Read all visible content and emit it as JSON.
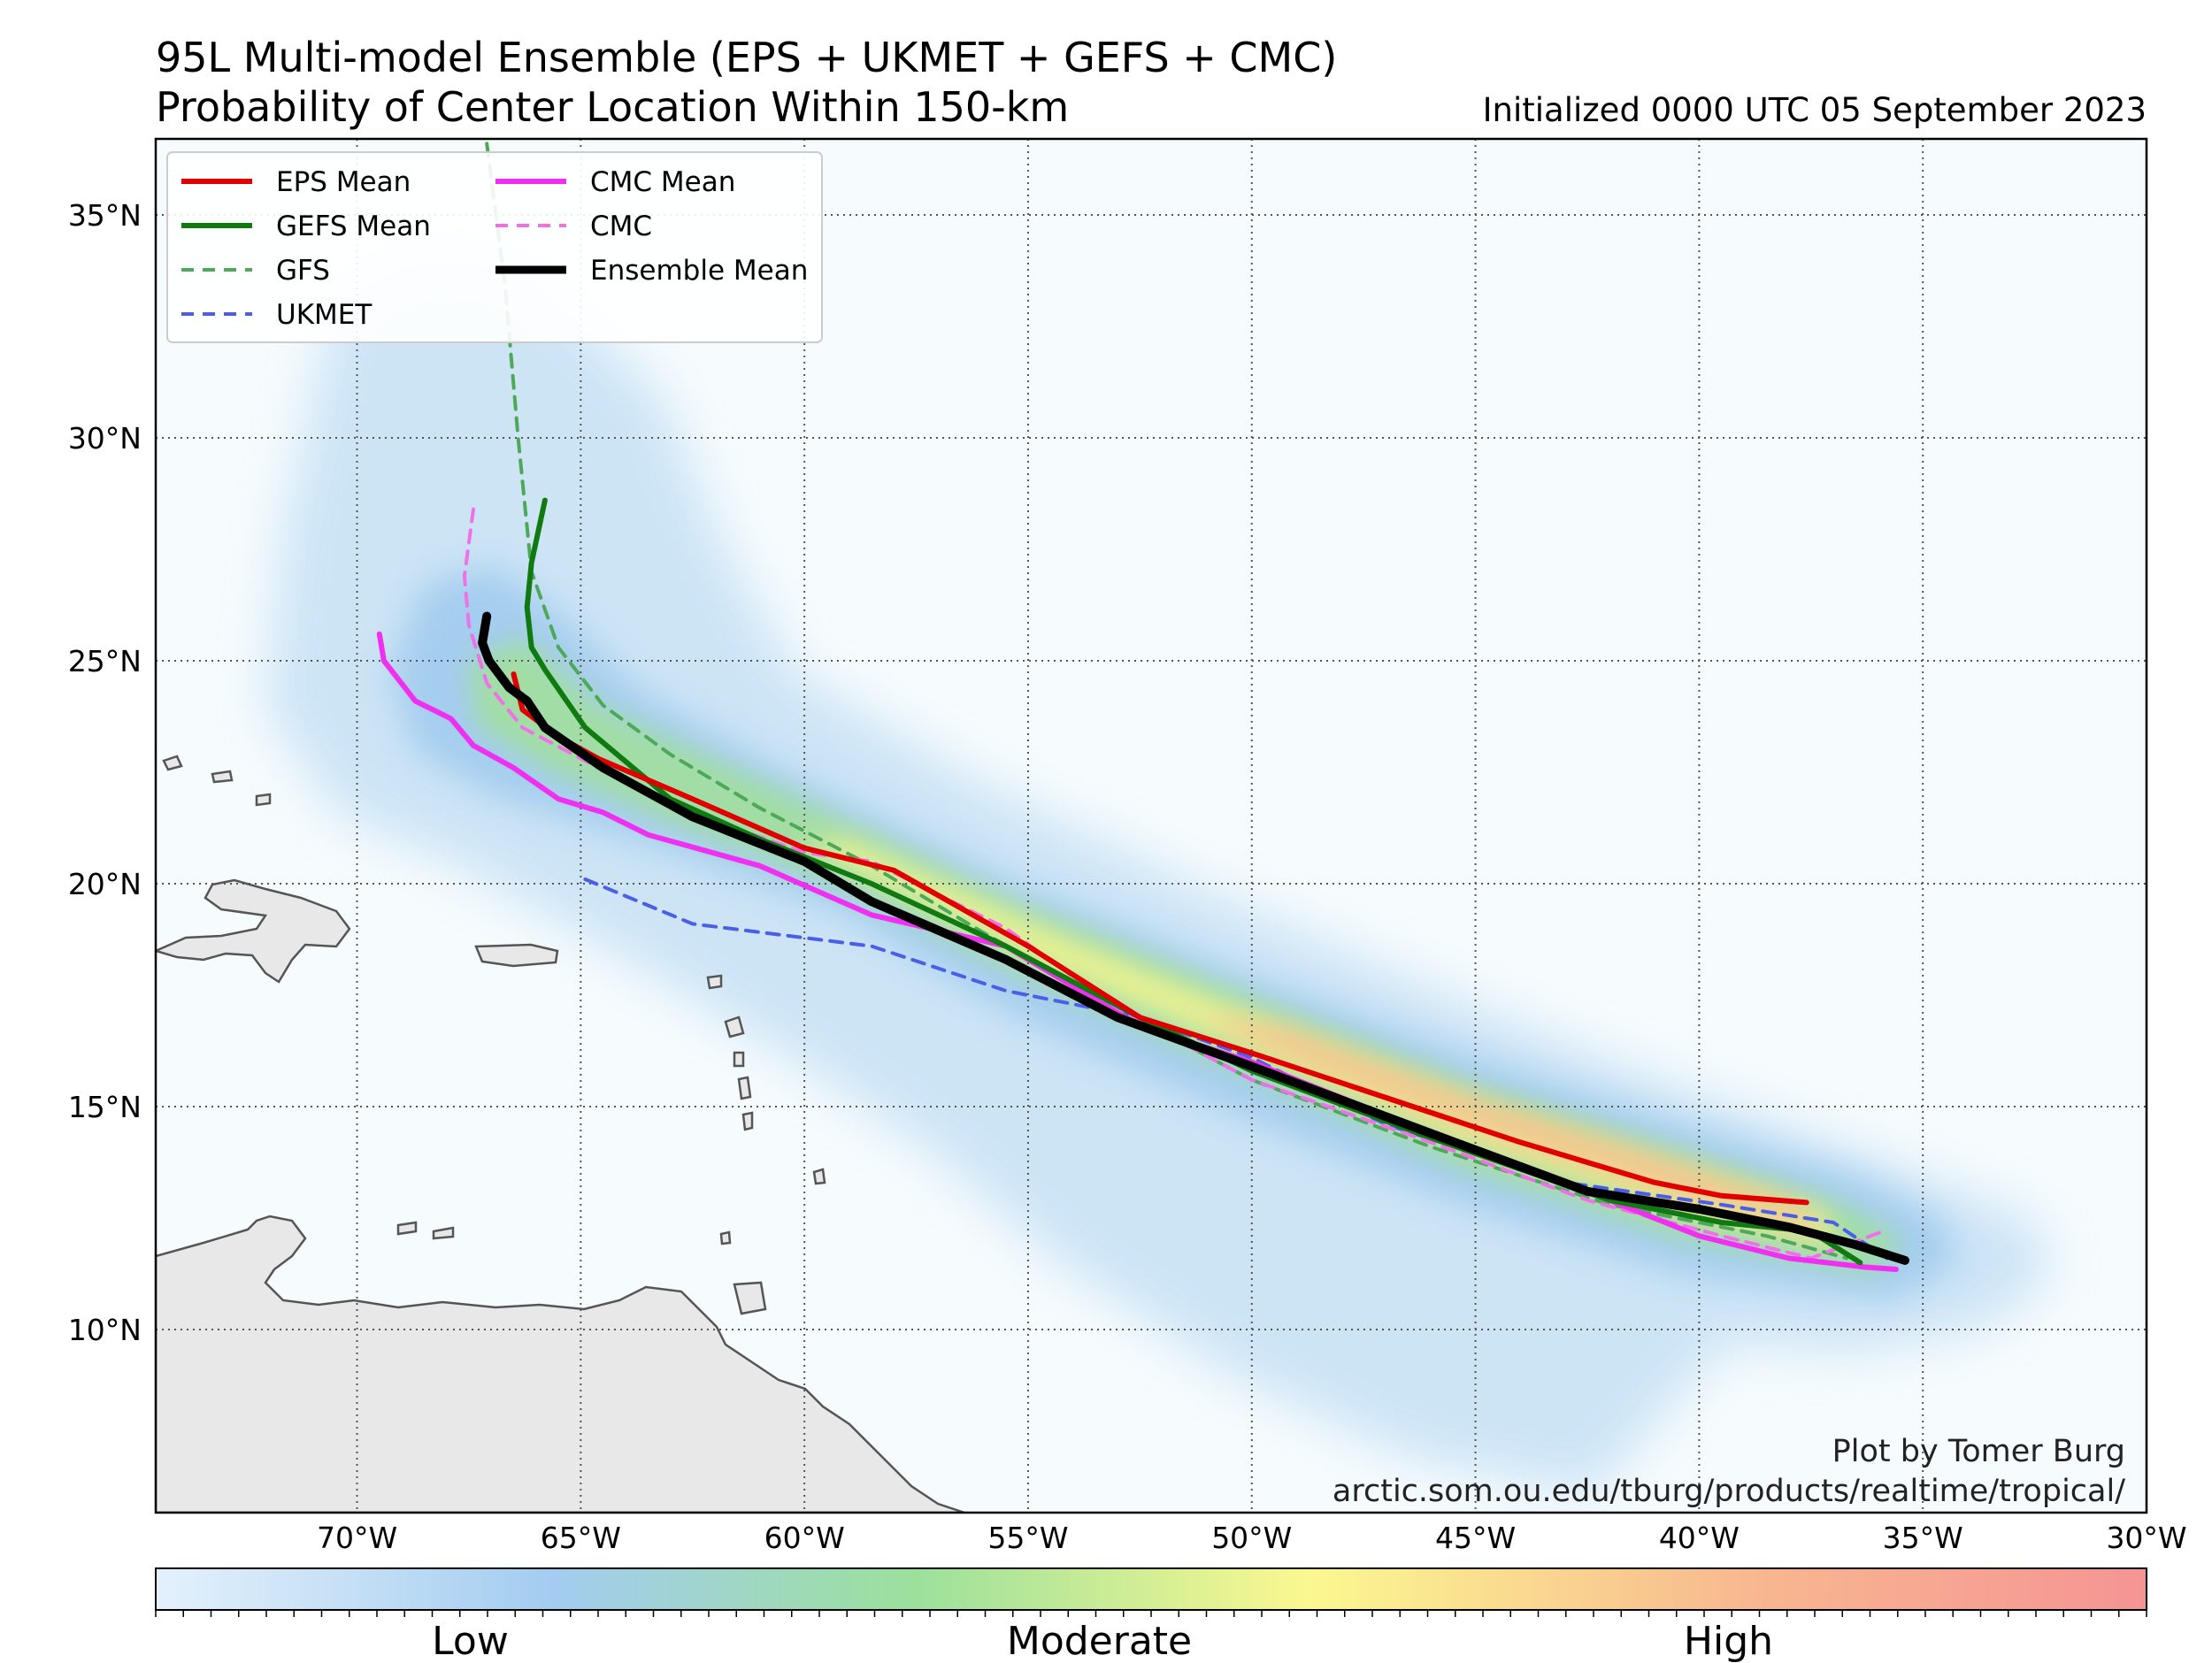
{
  "title": {
    "line1": "95L Multi-model Ensemble (EPS + UKMET + GEFS + CMC)",
    "line2": "Probability of Center Location Within 150-km",
    "initialized": "Initialized 0000 UTC 05 September 2023"
  },
  "map": {
    "lon_range": [
      -74.5,
      -30
    ],
    "lat_range": [
      6,
      37
    ],
    "lon_ticks": [
      {
        "value": -70,
        "label": "70°W"
      },
      {
        "value": -65,
        "label": "65°W"
      },
      {
        "value": -60,
        "label": "60°W"
      },
      {
        "value": -55,
        "label": "55°W"
      },
      {
        "value": -50,
        "label": "50°W"
      },
      {
        "value": -45,
        "label": "45°W"
      },
      {
        "value": -40,
        "label": "40°W"
      },
      {
        "value": -35,
        "label": "35°W"
      },
      {
        "value": -30,
        "label": "30°W"
      }
    ],
    "lat_ticks": [
      {
        "value": 10,
        "label": "10°N"
      },
      {
        "value": 15,
        "label": "15°N"
      },
      {
        "value": 20,
        "label": "20°N"
      },
      {
        "value": 25,
        "label": "25°N"
      },
      {
        "value": 30,
        "label": "30°N"
      },
      {
        "value": 35,
        "label": "35°N"
      }
    ],
    "gridlines": "dotted",
    "land_color": "#e8e8e8",
    "ocean_color": "#f6fbfd"
  },
  "legend": {
    "placement": "top-left",
    "entries": [
      {
        "name": "EPS Mean",
        "color": "#e00000",
        "style": "solid"
      },
      {
        "name": "GEFS Mean",
        "color": "#107a10",
        "style": "solid"
      },
      {
        "name": "GFS",
        "color": "#4ea85a",
        "style": "dashed"
      },
      {
        "name": "UKMET",
        "color": "#4a5ee8",
        "style": "dashed"
      },
      {
        "name": "CMC Mean",
        "color": "#f030f0",
        "style": "solid"
      },
      {
        "name": "CMC",
        "color": "#f070e8",
        "style": "dashed"
      },
      {
        "name": "Ensemble Mean",
        "color": "#000000",
        "style": "solid"
      }
    ]
  },
  "tracks": [
    {
      "name": "GFS",
      "color": "#4ea85a",
      "dash": true,
      "width": 4,
      "points": [
        [
          -67.1,
          36.6
        ],
        [
          -66.7,
          33.5
        ],
        [
          -66.4,
          30
        ],
        [
          -66.1,
          27
        ],
        [
          -65.5,
          25.3
        ],
        [
          -64.5,
          24
        ],
        [
          -63,
          22.9
        ],
        [
          -61,
          21.7
        ],
        [
          -58.5,
          20.4
        ],
        [
          -56,
          18.9
        ],
        [
          -53,
          17.2
        ],
        [
          -50,
          15.6
        ],
        [
          -46,
          14.1
        ],
        [
          -42,
          12.8
        ],
        [
          -38.5,
          12.1
        ],
        [
          -36.7,
          11.6
        ]
      ]
    },
    {
      "name": "UKMET",
      "color": "#4a5ee8",
      "dash": true,
      "width": 4,
      "points": [
        [
          -64.9,
          20.1
        ],
        [
          -62.5,
          19.1
        ],
        [
          -58.5,
          18.6
        ],
        [
          -55.5,
          17.6
        ],
        [
          -52.5,
          17
        ],
        [
          -50,
          16.1
        ],
        [
          -47,
          14.6
        ],
        [
          -43,
          13.3
        ],
        [
          -39.5,
          12.8
        ],
        [
          -37,
          12.4
        ],
        [
          -35.8,
          11.6
        ]
      ]
    },
    {
      "name": "CMC",
      "color": "#f070e8",
      "dash": true,
      "width": 4,
      "points": [
        [
          -67.4,
          28.4
        ],
        [
          -67.6,
          26.9
        ],
        [
          -67.5,
          25.8
        ],
        [
          -67.1,
          24.5
        ],
        [
          -66.3,
          23.5
        ],
        [
          -64.6,
          22.6
        ],
        [
          -62.3,
          21.5
        ],
        [
          -60,
          20.7
        ],
        [
          -58.5,
          20.5
        ],
        [
          -55.5,
          19
        ],
        [
          -53,
          17.2
        ],
        [
          -50,
          15.6
        ],
        [
          -46,
          14.2
        ],
        [
          -42.5,
          12.9
        ],
        [
          -39.5,
          12.1
        ],
        [
          -37.5,
          11.6
        ],
        [
          -35.9,
          12.2
        ]
      ]
    },
    {
      "name": "CMC Mean",
      "color": "#f030f0",
      "dash": false,
      "width": 6,
      "points": [
        [
          -69.5,
          25.6
        ],
        [
          -69.4,
          25
        ],
        [
          -68.7,
          24.1
        ],
        [
          -67.9,
          23.7
        ],
        [
          -67.4,
          23.1
        ],
        [
          -66.5,
          22.6
        ],
        [
          -65.5,
          21.9
        ],
        [
          -64.5,
          21.6
        ],
        [
          -63.5,
          21.1
        ],
        [
          -61,
          20.4
        ],
        [
          -58.5,
          19.3
        ],
        [
          -55.5,
          18.6
        ],
        [
          -52.5,
          16.8
        ],
        [
          -50,
          16
        ],
        [
          -46,
          14.4
        ],
        [
          -42.5,
          13.1
        ],
        [
          -40,
          12.1
        ],
        [
          -38,
          11.6
        ],
        [
          -36.3,
          11.4
        ],
        [
          -35.6,
          11.35
        ]
      ]
    },
    {
      "name": "GEFS Mean",
      "color": "#107a10",
      "dash": false,
      "width": 6,
      "points": [
        [
          -65.8,
          28.6
        ],
        [
          -66.1,
          27.2
        ],
        [
          -66.2,
          26.2
        ],
        [
          -66.1,
          25.3
        ],
        [
          -65.8,
          24.8
        ],
        [
          -64.9,
          23.5
        ],
        [
          -63,
          21.9
        ],
        [
          -61,
          21
        ],
        [
          -58.5,
          20
        ],
        [
          -55.5,
          18.6
        ],
        [
          -52.5,
          17
        ],
        [
          -50,
          15.8
        ],
        [
          -46,
          14.3
        ],
        [
          -42,
          12.9
        ],
        [
          -39.5,
          12.4
        ],
        [
          -37.5,
          12.2
        ],
        [
          -36.4,
          11.5
        ]
      ]
    },
    {
      "name": "EPS Mean",
      "color": "#e00000",
      "dash": false,
      "width": 6,
      "points": [
        [
          -66.5,
          24.7
        ],
        [
          -66.3,
          23.9
        ],
        [
          -65.5,
          23.3
        ],
        [
          -64.6,
          22.8
        ],
        [
          -62.5,
          21.9
        ],
        [
          -60,
          20.8
        ],
        [
          -58,
          20.3
        ],
        [
          -55,
          18.6
        ],
        [
          -52.5,
          17
        ],
        [
          -50,
          16.2
        ],
        [
          -47,
          15.2
        ],
        [
          -44,
          14.2
        ],
        [
          -41,
          13.3
        ],
        [
          -39.5,
          13
        ],
        [
          -37.6,
          12.85
        ]
      ]
    },
    {
      "name": "Ensemble Mean",
      "color": "#000000",
      "dash": false,
      "width": 10,
      "points": [
        [
          -67.1,
          26
        ],
        [
          -67.2,
          25.4
        ],
        [
          -67.05,
          25
        ],
        [
          -66.6,
          24.4
        ],
        [
          -66.2,
          24.1
        ],
        [
          -65.8,
          23.5
        ],
        [
          -64.5,
          22.6
        ],
        [
          -62.5,
          21.5
        ],
        [
          -60,
          20.5
        ],
        [
          -58.5,
          19.6
        ],
        [
          -55.5,
          18.3
        ],
        [
          -53,
          17
        ],
        [
          -50,
          15.9
        ],
        [
          -46,
          14.4
        ],
        [
          -42.5,
          13.1
        ],
        [
          -40,
          12.7
        ],
        [
          -38,
          12.3
        ],
        [
          -36.5,
          11.9
        ],
        [
          -35.4,
          11.55
        ]
      ]
    }
  ],
  "probability_swath": {
    "levels": [
      "Low",
      "Moderate",
      "High"
    ],
    "colors": [
      "#e4f1fb",
      "#9fcbee",
      "#9be09c",
      "#f9f892",
      "#f8b890",
      "#f48e8e"
    ]
  },
  "colorbar": {
    "labels": [
      {
        "text": "Low",
        "position": 0.158
      },
      {
        "text": "Moderate",
        "position": 0.474
      },
      {
        "text": "High",
        "position": 0.79
      }
    ],
    "stops": [
      "#e4f1fb",
      "#a3ccf0",
      "#9be09c",
      "#fbf890",
      "#f8b890",
      "#f59494"
    ]
  },
  "credit": {
    "line1": "Plot by Tomer Burg",
    "line2": "arctic.som.ou.edu/tburg/products/realtime/tropical/"
  }
}
